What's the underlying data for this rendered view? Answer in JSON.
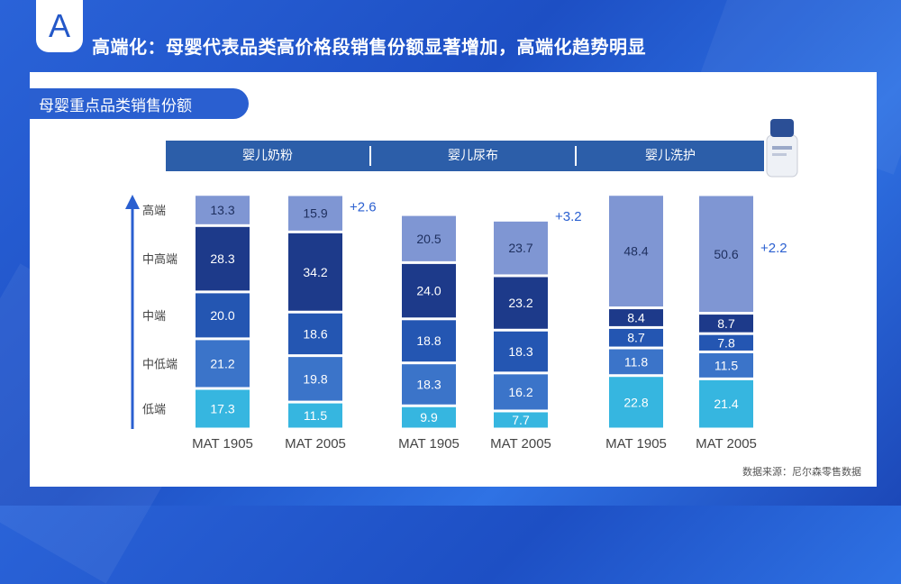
{
  "badge": "A",
  "title": "高端化：母婴代表品类高价格段销售份额显著增加，高端化趋势明显",
  "subtitle": "母婴重点品类销售份额",
  "source": "数据来源：尼尔森零售数据",
  "colors": {
    "高端": "#7f96d3",
    "中高端": "#1d3a8a",
    "中端": "#2456b2",
    "中低端": "#3b74c9",
    "低端": "#36b6e0"
  },
  "chart_data": {
    "type": "bar",
    "stacked": true,
    "normalized": true,
    "segments_bottom_to_top": [
      "低端",
      "中低端",
      "中端",
      "中高端",
      "高端"
    ],
    "groups": [
      "婴儿奶粉",
      "婴儿尿布",
      "婴儿洗护"
    ],
    "bars": [
      {
        "group": "婴儿奶粉",
        "label": "MAT 1905",
        "values": {
          "低端": 17.3,
          "中低端": 21.2,
          "中端": 20.0,
          "中高端": 28.3,
          "高端": 13.3
        }
      },
      {
        "group": "婴儿奶粉",
        "label": "MAT 2005",
        "values": {
          "低端": 11.5,
          "中低端": 19.8,
          "中端": 18.6,
          "中高端": 34.2,
          "高端": 15.9
        },
        "delta": "+2.6"
      },
      {
        "group": "婴儿尿布",
        "label": "MAT 1905",
        "values": {
          "低端": 9.9,
          "中低端": 18.3,
          "中端": 18.8,
          "中高端": 24.0,
          "高端": 20.5
        }
      },
      {
        "group": "婴儿尿布",
        "label": "MAT 2005",
        "values": {
          "低端": 7.7,
          "中低端": 16.2,
          "中端": 18.3,
          "中高端": 23.2,
          "高端": 23.7
        },
        "delta": "+3.2"
      },
      {
        "group": "婴儿洗护",
        "label": "MAT 1905",
        "values": {
          "低端": 22.8,
          "中低端": 11.8,
          "中端": 8.7,
          "中高端": 8.4,
          "高端": 48.4
        }
      },
      {
        "group": "婴儿洗护",
        "label": "MAT 2005",
        "values": {
          "低端": 21.4,
          "中低端": 11.5,
          "中端": 7.8,
          "中高端": 8.7,
          "高端": 50.6
        },
        "delta": "+2.2"
      }
    ]
  }
}
